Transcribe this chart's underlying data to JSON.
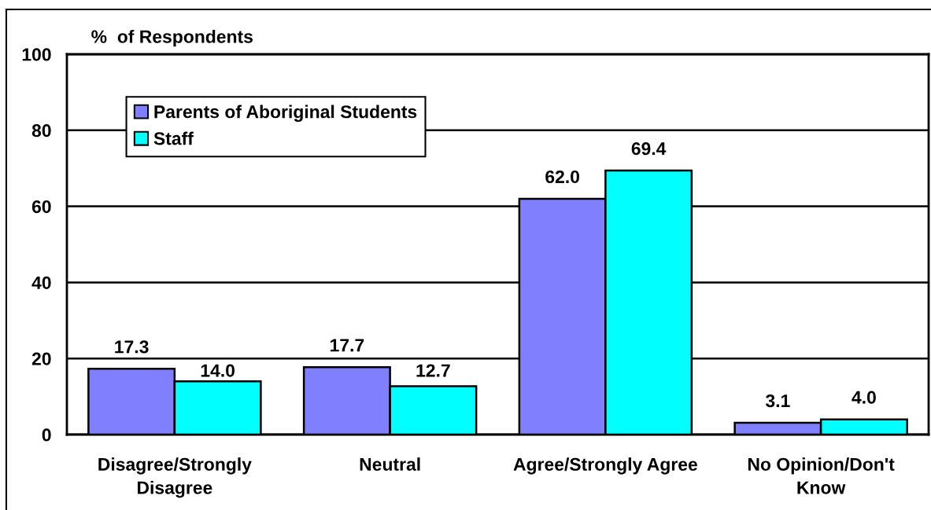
{
  "chart_data": {
    "type": "bar",
    "ylabel": "%  of Respondents",
    "categories": [
      "Disagree/Strongly Disagree",
      "Neutral",
      "Agree/Strongly Agree",
      "No Opinion/Don't Know"
    ],
    "series": [
      {
        "name": "Parents of Aboriginal Students",
        "color": "#8080ff",
        "values": [
          17.3,
          17.7,
          62.0,
          3.1
        ],
        "value_labels": [
          "17.3",
          "17.7",
          "62.0",
          "3.1"
        ]
      },
      {
        "name": "Staff",
        "color": "#00ffff",
        "values": [
          14.0,
          12.7,
          69.4,
          4.0
        ],
        "value_labels": [
          "14.0",
          "12.7",
          "69.4",
          "4.0"
        ]
      }
    ],
    "ylim": [
      0,
      100
    ],
    "yticks": [
      0,
      20,
      40,
      60,
      80,
      100
    ],
    "grid": "y",
    "legend": "top left"
  }
}
